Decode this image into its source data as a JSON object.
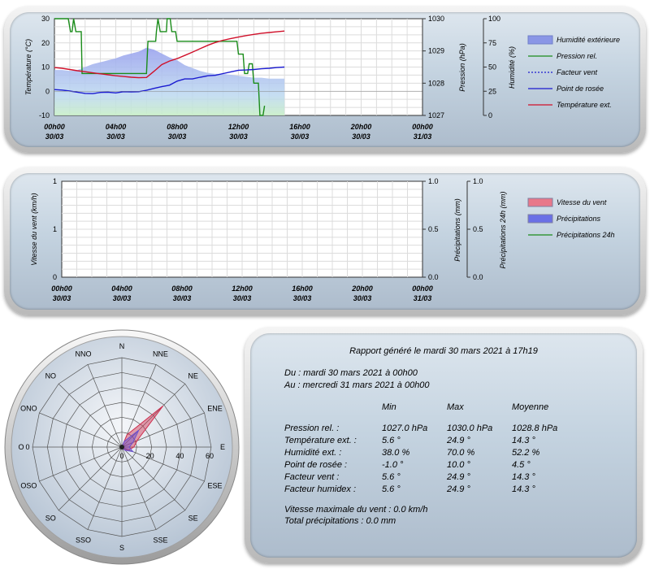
{
  "chart_data": [
    {
      "type": "line",
      "x_ticks": [
        "00h00\n30/03",
        "04h00\n30/03",
        "08h00\n30/03",
        "12h00\n30/03",
        "16h00\n30/03",
        "20h00\n30/03",
        "00h00\n31/03"
      ],
      "y_left": {
        "label": "Température (°C)",
        "range": [
          -10,
          30
        ],
        "ticks": [
          "30",
          "20",
          "10",
          "0",
          "-10"
        ]
      },
      "y_right1": {
        "label": "Pression (hPa)",
        "range": [
          1027,
          1030
        ],
        "ticks": [
          "1030",
          "1029",
          "1028",
          "1027"
        ]
      },
      "y_right2": {
        "label": "Humidité (%)",
        "range": [
          0,
          100
        ],
        "ticks": [
          "100",
          "75",
          "50",
          "25",
          "0"
        ]
      },
      "legend": [
        {
          "name": "Humidité extérieure",
          "color": "#8a96e6",
          "style": "area"
        },
        {
          "name": "Pression rel.",
          "color": "#1a8c1a",
          "style": "line"
        },
        {
          "name": "Facteur vent",
          "color": "#1a1ad0",
          "style": "dotted"
        },
        {
          "name": "Point de rosée",
          "color": "#1a1ad0",
          "style": "line"
        },
        {
          "name": "Température ext.",
          "color": "#d0102a",
          "style": "line"
        }
      ],
      "series": [
        {
          "name": "Humidité extérieure",
          "axis": "humidity",
          "x": [
            0,
            0.5,
            1,
            1.5,
            2,
            2.5,
            3,
            3.5,
            4,
            4.5,
            5,
            5.5,
            6,
            6.5,
            7,
            7.5,
            8,
            8.5,
            9,
            9.5,
            10,
            10.5,
            11,
            11.5,
            12,
            12.5,
            13,
            13.5,
            14,
            14.5,
            15
          ],
          "y": [
            47,
            47,
            46,
            47,
            50,
            53,
            55,
            57,
            59,
            62,
            64,
            66,
            70,
            68,
            64,
            60,
            57,
            52,
            49,
            46,
            44,
            43,
            43,
            42,
            41,
            40,
            39,
            39,
            38,
            38,
            38
          ]
        },
        {
          "name": "Température ext.",
          "axis": "temperature",
          "x": [
            0,
            0.5,
            1,
            1.5,
            2,
            2.5,
            3,
            3.5,
            4,
            4.5,
            5,
            5.5,
            6,
            6.5,
            7,
            7.5,
            8,
            8.5,
            9,
            9.5,
            10,
            10.5,
            11,
            11.5,
            12,
            12.5,
            13,
            13.5,
            14,
            14.5,
            15
          ],
          "y": [
            9.8,
            9.5,
            9.0,
            8.5,
            8.1,
            7.6,
            7.2,
            6.8,
            6.4,
            6.1,
            5.8,
            5.6,
            5.7,
            8.3,
            11,
            12.5,
            13.5,
            14.8,
            16.2,
            17.6,
            19,
            20.2,
            21.1,
            21.8,
            22.4,
            23,
            23.5,
            24,
            24.3,
            24.6,
            24.9
          ]
        },
        {
          "name": "Point de rosée",
          "axis": "temperature",
          "x": [
            0,
            0.5,
            1,
            1.5,
            2,
            2.5,
            3,
            3.5,
            4,
            4.5,
            5,
            5.5,
            6,
            6.5,
            7,
            7.5,
            8,
            8.5,
            9,
            9.5,
            10,
            10.5,
            11,
            11.5,
            12,
            12.5,
            13,
            13.5,
            14,
            14.5,
            15
          ],
          "y": [
            0.7,
            0.5,
            0.1,
            -0.4,
            -0.9,
            -1.0,
            -0.5,
            -0.4,
            -0.7,
            -0.2,
            -0.3,
            -0.2,
            0.4,
            1.2,
            1.9,
            2.5,
            4.2,
            5.1,
            5.1,
            5.8,
            6.4,
            6.6,
            7.3,
            8,
            8.7,
            8.8,
            9,
            9.3,
            9.5,
            9.8,
            10
          ]
        },
        {
          "name": "Pression rel.",
          "axis": "pressure",
          "x": [
            0,
            0.8,
            0.9,
            1.05,
            1.15,
            1.25,
            1.4,
            1.75,
            1.8,
            6.0,
            6.1,
            6.6,
            6.65,
            6.75,
            6.9,
            7.3,
            7.35,
            7.55,
            7.65,
            7.9,
            8.0,
            11.9,
            12.0,
            12.3,
            12.4,
            12.6,
            12.7,
            12.9,
            13.0,
            13.3,
            13.4,
            13.6,
            13.7
          ],
          "y": [
            1030,
            1030,
            1030,
            1029.6,
            1029.6,
            1030,
            1029.6,
            1029.6,
            1028.3,
            1028.3,
            1029.3,
            1029.3,
            1029.6,
            1030,
            1029.6,
            1029.6,
            1030,
            1030,
            1029.6,
            1029.6,
            1029.3,
            1029.3,
            1028.9,
            1028.9,
            1028.3,
            1028.3,
            1028.6,
            1028.6,
            1028.0,
            1028.0,
            1027.0,
            1027.0,
            1027.3
          ]
        }
      ]
    },
    {
      "type": "line",
      "x_ticks": [
        "00h00\n30/03",
        "04h00\n30/03",
        "08h00\n30/03",
        "12h00\n30/03",
        "16h00\n30/03",
        "20h00\n30/03",
        "00h00\n31/03"
      ],
      "y_left": {
        "label": "Vitesse du vent (km/h)",
        "range": [
          0,
          1
        ],
        "ticks": [
          "1",
          "1",
          "0"
        ]
      },
      "y_right1": {
        "label": "Précipitations (mm)",
        "range": [
          0,
          1
        ],
        "ticks": [
          "1.0",
          "0.5",
          "0.0"
        ]
      },
      "y_right2": {
        "label": "Précipitations 24h (mm)",
        "range": [
          0,
          1
        ],
        "ticks": [
          "1.0",
          "0.5",
          "0.0"
        ]
      },
      "legend": [
        {
          "name": "Vitesse du vent",
          "color": "#e8788a",
          "style": "area"
        },
        {
          "name": "Précipitations",
          "color": "#6a70e6",
          "style": "area"
        },
        {
          "name": "Précipitations 24h",
          "color": "#1a8c1a",
          "style": "line"
        }
      ],
      "series": []
    },
    {
      "type": "polar",
      "directions": [
        "N",
        "NNE",
        "NE",
        "ENE",
        "E",
        "ESE",
        "SE",
        "SSE",
        "S",
        "SSO",
        "SO",
        "OSO",
        "O",
        "ONO",
        "NO",
        "NNO"
      ],
      "radial_ticks": [
        "0",
        "20",
        "40",
        "60"
      ],
      "radial_range": [
        0,
        60
      ],
      "series": [
        {
          "name": "wind-red",
          "color": "#d03050",
          "values": [
            0,
            9,
            39,
            11,
            8,
            5,
            2,
            0,
            0,
            0,
            0,
            0,
            0,
            0,
            0,
            0
          ]
        },
        {
          "name": "wind-blue",
          "color": "#6a50d0",
          "values": [
            0,
            4,
            16,
            8,
            5,
            8,
            3,
            1,
            0,
            0,
            0,
            0,
            0,
            0,
            0,
            0
          ]
        }
      ]
    }
  ],
  "report": {
    "title": "Rapport généré le mardi 30 mars 2021 à 17h19",
    "from": "Du : mardi 30 mars 2021 à 00h00",
    "to": "Au : mercredi 31 mars 2021 à 00h00",
    "headers": [
      "Min",
      "Max",
      "Moyenne"
    ],
    "rows": [
      {
        "label": "Pression rel. :",
        "min": "1027.0 hPa",
        "max": "1030.0 hPa",
        "avg": "1028.8 hPa"
      },
      {
        "label": "Température ext. :",
        "min": "5.6 °",
        "max": "24.9 °",
        "avg": "14.3 °"
      },
      {
        "label": "Humidité ext. :",
        "min": "38.0 %",
        "max": "70.0 %",
        "avg": "52.2 %"
      },
      {
        "label": "Point de rosée :",
        "min": "-1.0 °",
        "max": "10.0 °",
        "avg": "4.5 °"
      },
      {
        "label": "Facteur vent :",
        "min": "5.6 °",
        "max": "24.9 °",
        "avg": "14.3 °"
      },
      {
        "label": "Facteur humidex :",
        "min": "5.6 °",
        "max": "24.9 °",
        "avg": "14.3 °"
      }
    ],
    "wind_max": "Vitesse maximale du vent : 0.0 km/h",
    "precip_total": "Total précipitations : 0.0 mm"
  }
}
